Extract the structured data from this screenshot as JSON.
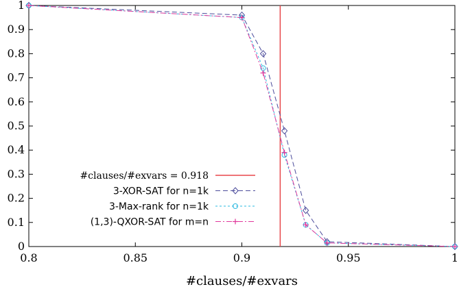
{
  "chart_data": {
    "type": "line",
    "title": "",
    "xlabel": "#clauses/#exvars",
    "ylabel": "",
    "xlim": [
      0.8,
      1.0
    ],
    "ylim": [
      0,
      1
    ],
    "xticks": [
      0.8,
      0.85,
      0.9,
      0.95,
      1.0
    ],
    "xtick_labels": [
      "0.8",
      "0.85",
      "0.9",
      "0.95",
      "1"
    ],
    "yticks": [
      0,
      0.1,
      0.2,
      0.3,
      0.4,
      0.5,
      0.6,
      0.7,
      0.8,
      0.9,
      1.0
    ],
    "ytick_labels": [
      "0",
      "0.1",
      "0.2",
      "0.3",
      "0.4",
      "0.5",
      "0.6",
      "0.7",
      "0.8",
      "0.9",
      "1"
    ],
    "grid": false,
    "legend_position": "bottom-left",
    "vertical_line": {
      "x": 0.918,
      "label": "#clauses/#exvars = 0.918",
      "color": "#e8474a"
    },
    "series": [
      {
        "name": "3-XOR-SAT for n=1k",
        "color": "#4a4a9a",
        "marker": "diamond",
        "dash": "dashed",
        "x": [
          0.8,
          0.9,
          0.91,
          0.92,
          0.93,
          0.94,
          1.0
        ],
        "y": [
          1.0,
          0.96,
          0.8,
          0.48,
          0.15,
          0.02,
          0.0
        ]
      },
      {
        "name": "3-Max-rank for n=1k",
        "color": "#2ab8e0",
        "marker": "circle",
        "dash": "dotted",
        "x": [
          0.8,
          0.9,
          0.91,
          0.92,
          0.93,
          0.94,
          1.0
        ],
        "y": [
          1.0,
          0.95,
          0.74,
          0.38,
          0.09,
          0.015,
          0.0
        ]
      },
      {
        "name": "(1,3)-QXOR-SAT for m=n",
        "color": "#e0359a",
        "marker": "plus",
        "dash": "dashdot",
        "x": [
          0.8,
          0.9,
          0.91,
          0.92,
          0.93,
          0.94,
          1.0
        ],
        "y": [
          1.0,
          0.95,
          0.72,
          0.39,
          0.09,
          0.015,
          0.0
        ]
      }
    ]
  }
}
